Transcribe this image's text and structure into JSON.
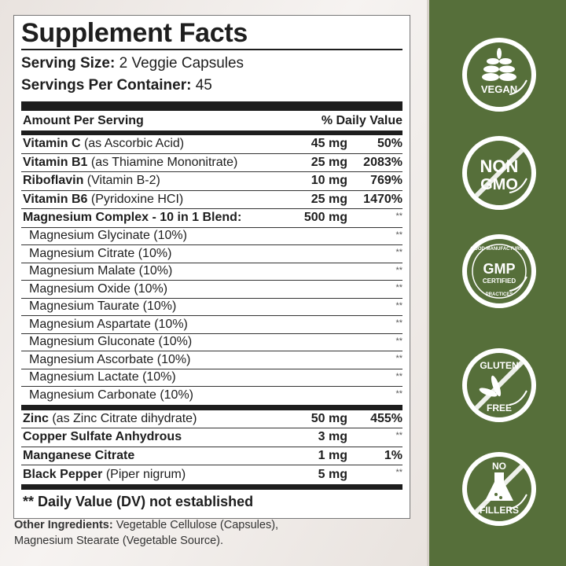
{
  "title": "Supplement Facts",
  "serving_size": {
    "label": "Serving Size:",
    "value": "2 Veggie Capsules"
  },
  "servings_per_container": {
    "label": "Servings Per Container:",
    "value": "45"
  },
  "header": {
    "amount": "Amount Per Serving",
    "dv": "% Daily Value"
  },
  "main_rows": [
    {
      "name": "Vitamin C",
      "detail": "(as Ascorbic Acid)",
      "amount": "45 mg",
      "dv": "50%"
    },
    {
      "name": "Vitamin B1",
      "detail": "(as Thiamine Mononitrate)",
      "amount": "25 mg",
      "dv": "2083%"
    },
    {
      "name": "Riboflavin",
      "detail": "(Vitamin B-2)",
      "amount": "10 mg",
      "dv": "769%"
    },
    {
      "name": "Vitamin B6",
      "detail": "(Pyridoxine HCI)",
      "amount": "25 mg",
      "dv": "1470%"
    },
    {
      "name": "Magnesium Complex - 10 in 1 Blend:",
      "detail": "",
      "amount": "500 mg",
      "dv": "**"
    }
  ],
  "blend_rows": [
    {
      "name": "Magnesium Glycinate (10%)",
      "dv": "**"
    },
    {
      "name": "Magnesium Citrate (10%)",
      "dv": "**"
    },
    {
      "name": "Magnesium Malate (10%)",
      "dv": "**"
    },
    {
      "name": "Magnesium Oxide (10%)",
      "dv": "**"
    },
    {
      "name": "Magnesium Taurate (10%)",
      "dv": "**"
    },
    {
      "name": "Magnesium Aspartate (10%)",
      "dv": "**"
    },
    {
      "name": "Magnesium Gluconate (10%)",
      "dv": "**"
    },
    {
      "name": "Magnesium Ascorbate (10%)",
      "dv": "**"
    },
    {
      "name": "Magnesium Lactate (10%)",
      "dv": "**"
    },
    {
      "name": "Magnesium Carbonate (10%)",
      "dv": "**"
    }
  ],
  "mineral_rows": [
    {
      "name": "Zinc",
      "detail": "(as Zinc Citrate dihydrate)",
      "amount": "50 mg",
      "dv": "455%"
    },
    {
      "name": "Copper Sulfate Anhydrous",
      "detail": "",
      "amount": "3 mg",
      "dv": "**"
    },
    {
      "name": "Manganese Citrate",
      "detail": "",
      "amount": "1 mg",
      "dv": "1%"
    },
    {
      "name": "Black Pepper",
      "detail": "(Piper nigrum)",
      "amount": "5 mg",
      "dv": "**"
    }
  ],
  "footnote": "** Daily Value (DV) not established",
  "other_ingredients": {
    "label": "Other Ingredients:",
    "text": "Vegetable Cellulose (Capsules),",
    "text2": "Magnesium Stearate (Vegetable Source)."
  },
  "badges": [
    {
      "icon": "wheat-icon",
      "lines": [
        "VEGAN"
      ]
    },
    {
      "icon": "no-icon",
      "lines": [
        "NON",
        "GMO"
      ]
    },
    {
      "icon": "gmp-icon",
      "lines": [
        "GMP",
        "CERTIFIED"
      ],
      "ring_top": "GOOD MANUFACTURING",
      "ring_bottom": "PRACTICES"
    },
    {
      "icon": "wheat-crossed-icon",
      "lines": [
        "GLUTEN",
        "FREE"
      ]
    },
    {
      "icon": "flask-crossed-icon",
      "lines": [
        "NO",
        "FILLERS"
      ]
    }
  ],
  "colors": {
    "green": "#566f3a",
    "ink": "#1e1e1e"
  }
}
